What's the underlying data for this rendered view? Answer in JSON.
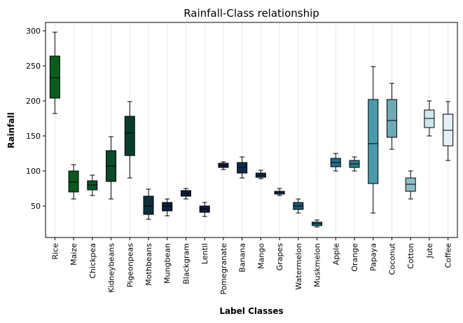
{
  "chart_data": {
    "type": "box",
    "title": "Rainfall-Class relationship",
    "xlabel": "Label Classes",
    "ylabel": "Rainfall",
    "ylim": [
      5,
      312
    ],
    "yticks": [
      50,
      100,
      150,
      200,
      250,
      300
    ],
    "grid": "vertical",
    "categories": [
      "Rice",
      "Maize",
      "Chickpea",
      "Kidneybeans",
      "Pigeonpeas",
      "Mothbeans",
      "Mungbean",
      "Blackgram",
      "Lentil",
      "Pomegranate",
      "Banana",
      "Mango",
      "Grapes",
      "Watermelon",
      "Muskmelon",
      "Apple",
      "Orange",
      "Papaya",
      "Coconut",
      "Cotton",
      "Jute",
      "Coffee"
    ],
    "boxes": [
      {
        "min": 182,
        "q1": 204,
        "median": 233,
        "q3": 264,
        "max": 298,
        "color": "#0b5d1e"
      },
      {
        "min": 60,
        "q1": 70,
        "median": 84,
        "q3": 100,
        "max": 109,
        "color": "#0a5a1c"
      },
      {
        "min": 65,
        "q1": 73,
        "median": 80,
        "q3": 86,
        "max": 94,
        "color": "#0b5427"
      },
      {
        "min": 60,
        "q1": 85,
        "median": 107,
        "q3": 129,
        "max": 149,
        "color": "#0b4a2a"
      },
      {
        "min": 90,
        "q1": 122,
        "median": 154,
        "q3": 178,
        "max": 199,
        "color": "#0b3d2e"
      },
      {
        "min": 31,
        "q1": 38,
        "median": 50,
        "q3": 64,
        "max": 74,
        "color": "#0d2f3c"
      },
      {
        "min": 36,
        "q1": 43,
        "median": 50,
        "q3": 55,
        "max": 60,
        "color": "#0d1f3e"
      },
      {
        "min": 60,
        "q1": 64,
        "median": 68,
        "q3": 72,
        "max": 75,
        "color": "#0e1c40"
      },
      {
        "min": 35,
        "q1": 41,
        "median": 46,
        "q3": 50,
        "max": 55,
        "color": "#0e1a3f"
      },
      {
        "min": 102,
        "q1": 105,
        "median": 108,
        "q3": 111,
        "max": 113,
        "color": "#0e2143"
      },
      {
        "min": 90,
        "q1": 97,
        "median": 105,
        "q3": 112,
        "max": 120,
        "color": "#0f2a4e"
      },
      {
        "min": 89,
        "q1": 91,
        "median": 94,
        "q3": 97,
        "max": 101,
        "color": "#10304f"
      },
      {
        "min": 65,
        "q1": 67,
        "median": 69,
        "q3": 71,
        "max": 75,
        "color": "#124058"
      },
      {
        "min": 40,
        "q1": 45,
        "median": 50,
        "q3": 55,
        "max": 60,
        "color": "#155a73"
      },
      {
        "min": 20,
        "q1": 22,
        "median": 25,
        "q3": 27,
        "max": 30,
        "color": "#186680"
      },
      {
        "min": 100,
        "q1": 106,
        "median": 112,
        "q3": 118,
        "max": 125,
        "color": "#1f6e87"
      },
      {
        "min": 100,
        "q1": 105,
        "median": 110,
        "q3": 115,
        "max": 120,
        "color": "#2d7b8f"
      },
      {
        "min": 40,
        "q1": 82,
        "median": 139,
        "q3": 202,
        "max": 249,
        "color": "#4b9aab"
      },
      {
        "min": 131,
        "q1": 148,
        "median": 172,
        "q3": 202,
        "max": 225,
        "color": "#6ea9b6"
      },
      {
        "min": 60,
        "q1": 71,
        "median": 81,
        "q3": 90,
        "max": 100,
        "color": "#8fbdc7"
      },
      {
        "min": 150,
        "q1": 162,
        "median": 175,
        "q3": 187,
        "max": 200,
        "color": "#cfe7ee"
      },
      {
        "min": 115,
        "q1": 136,
        "median": 158,
        "q3": 181,
        "max": 199,
        "color": "#e3f1f4"
      }
    ]
  }
}
